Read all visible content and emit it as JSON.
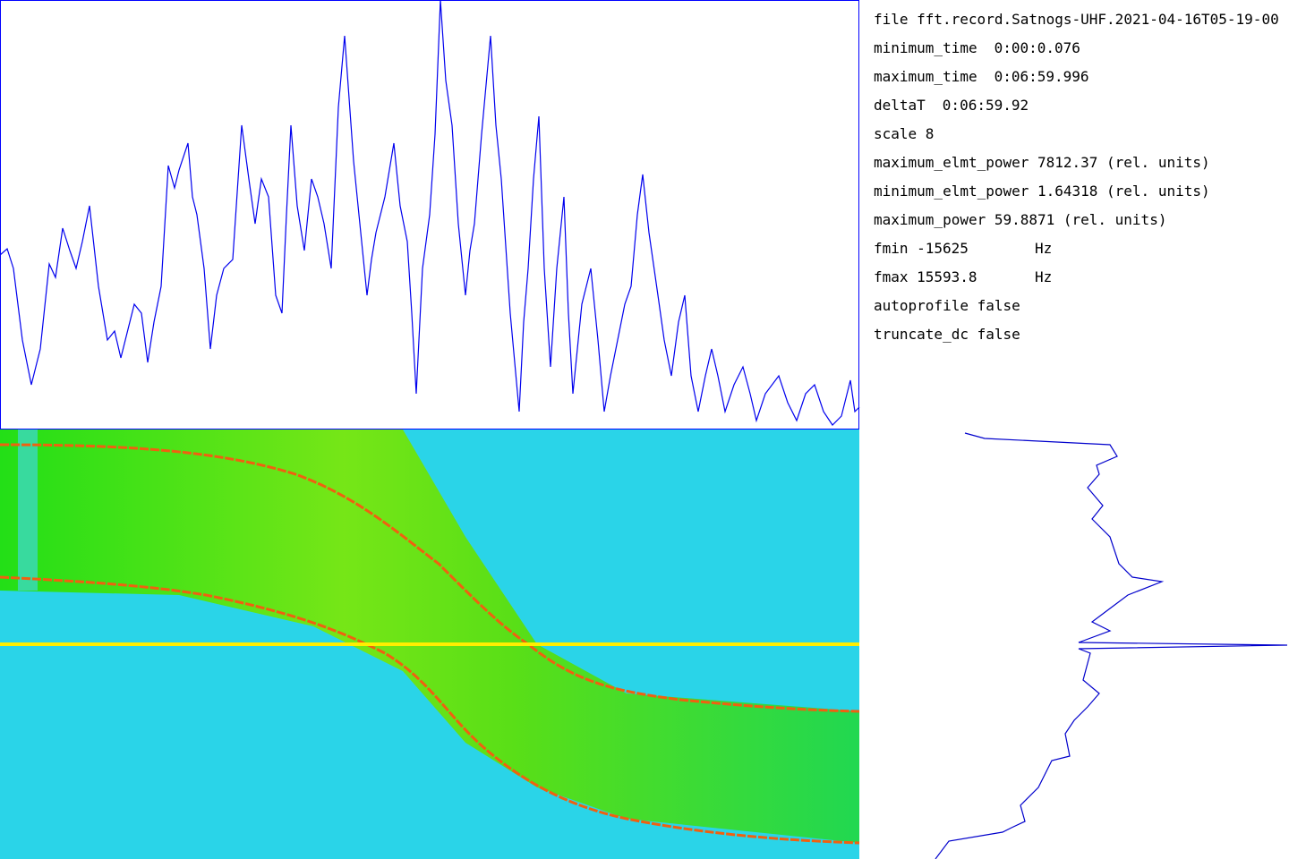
{
  "info": [
    {
      "key": "file",
      "value": "fft.record.Satnogs-UHF.2021-04-16T05-19-00"
    },
    {
      "key": "minimum_time",
      "value": "0:00:0.076"
    },
    {
      "key": "maximum_time",
      "value": "0:06:59.996"
    },
    {
      "key": "deltaT",
      "value": "0:06:59.92"
    },
    {
      "key": "scale",
      "value": "8"
    },
    {
      "key": "maximum_elmt_power",
      "value": "7812.37",
      "unit": "(rel. units)"
    },
    {
      "key": "minimum_elmt_power",
      "value": "1.64318",
      "unit": "(rel. units)"
    },
    {
      "key": "maximum_power",
      "value": "59.8871",
      "unit": "(rel. units)"
    },
    {
      "key": "fmin",
      "value": "-15625",
      "unit": "Hz",
      "unit_col": true
    },
    {
      "key": "fmax",
      "value": "15593.8",
      "unit": "Hz",
      "unit_col": true
    },
    {
      "key": "autoprofile",
      "value": "false"
    },
    {
      "key": "truncate_dc",
      "value": "false"
    }
  ]
}
